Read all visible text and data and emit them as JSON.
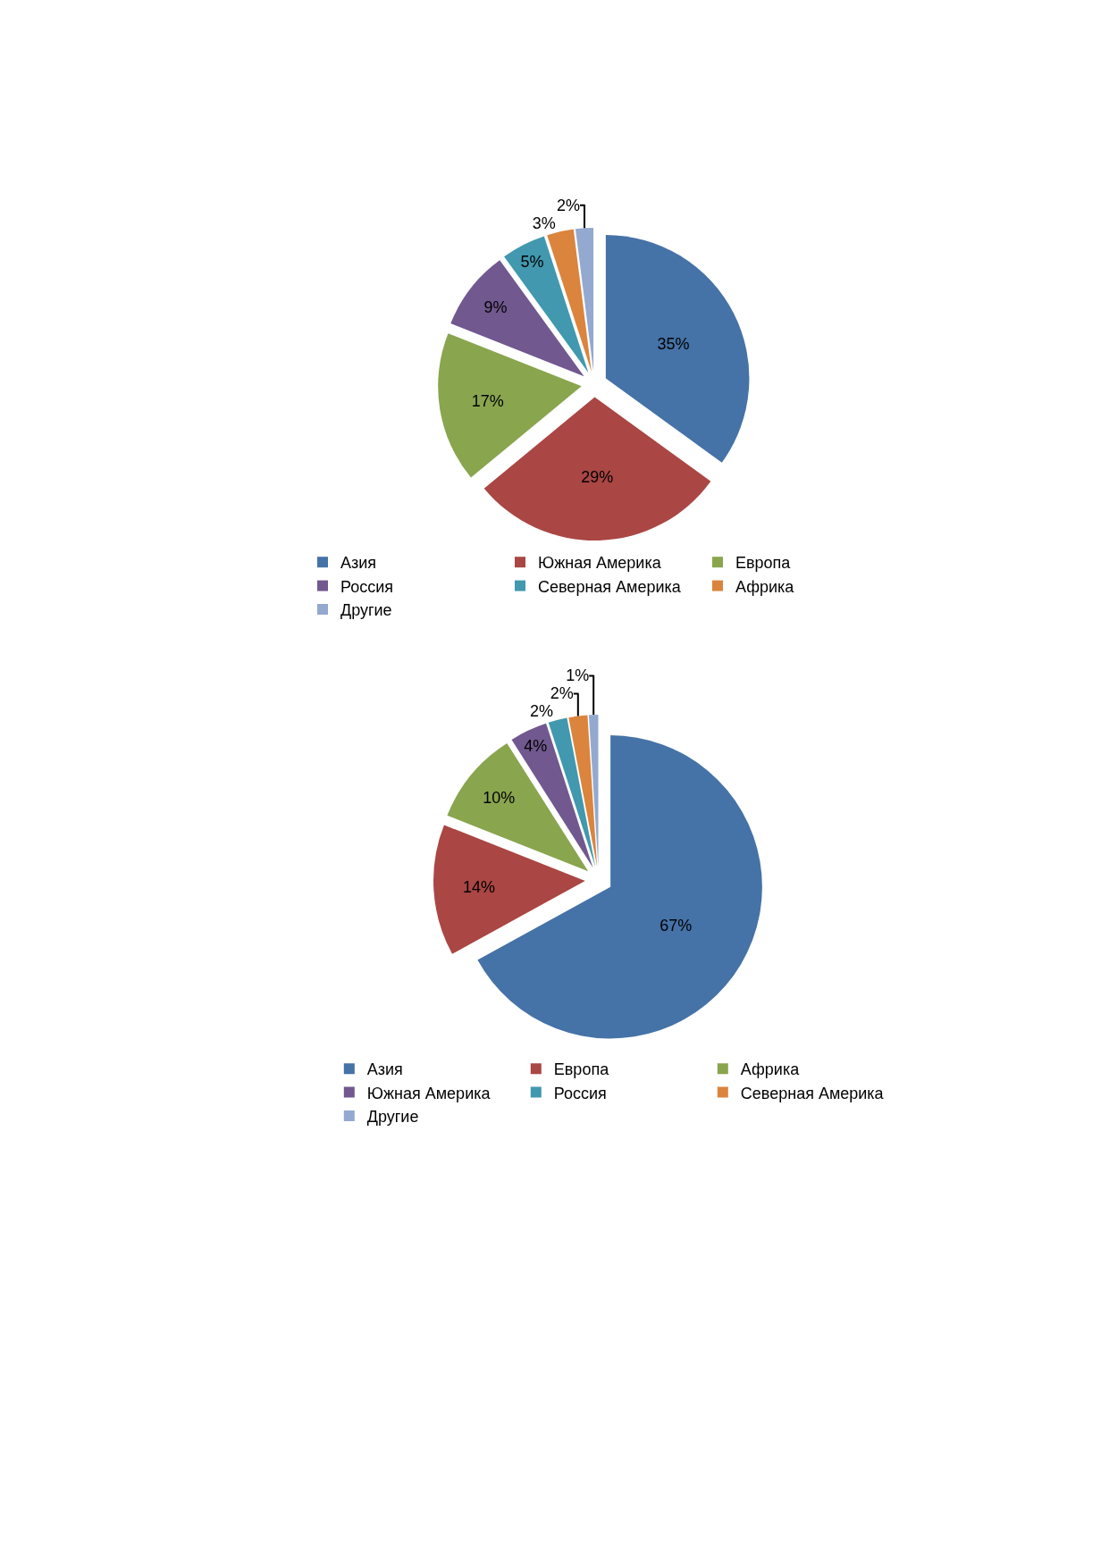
{
  "chart_data": [
    {
      "type": "pie",
      "categories": [
        "Азия",
        "Южная Америка",
        "Европа",
        "Россия",
        "Северная Америка",
        "Африка",
        "Другие"
      ],
      "values": [
        35,
        29,
        17,
        9,
        5,
        3,
        2
      ],
      "colors": [
        "#4572a7",
        "#aa4643",
        "#89a54e",
        "#71588f",
        "#4198af",
        "#db843d",
        "#93a9cf"
      ],
      "value_labels": [
        "35%",
        "29%",
        "17%",
        "9%",
        "5%",
        "3%",
        "2%"
      ],
      "legend": "bottom"
    },
    {
      "type": "pie",
      "categories": [
        "Азия",
        "Европа",
        "Африка",
        "Южная Америка",
        "Россия",
        "Северная Америка",
        "Другие"
      ],
      "values": [
        67,
        14,
        10,
        4,
        2,
        2,
        1
      ],
      "colors": [
        "#4572a7",
        "#aa4643",
        "#89a54e",
        "#71588f",
        "#4198af",
        "#db843d",
        "#93a9cf"
      ],
      "value_labels": [
        "67%",
        "14%",
        "10%",
        "4%",
        "2%",
        "2%",
        "1%"
      ],
      "legend": "bottom"
    }
  ]
}
